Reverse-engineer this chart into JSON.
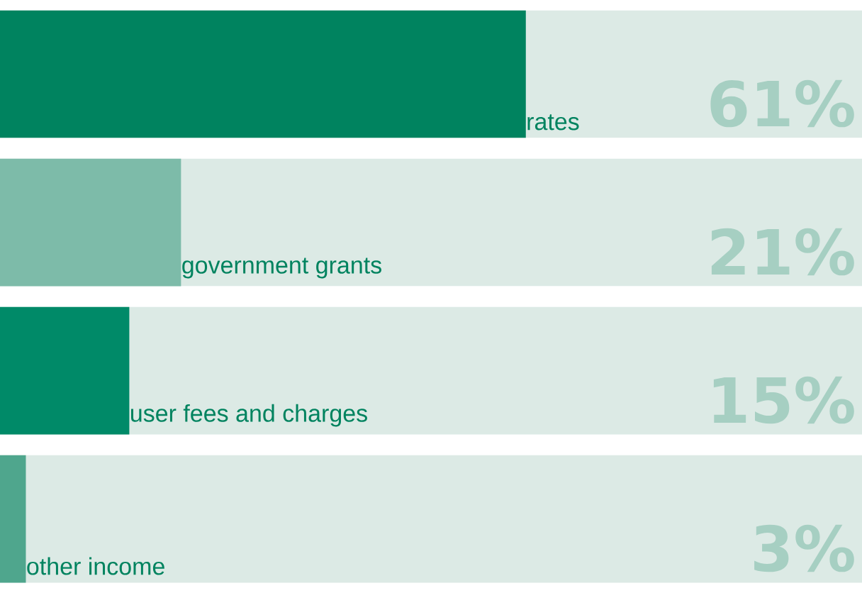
{
  "chart_data": {
    "type": "bar",
    "orientation": "horizontal",
    "categories": [
      "rates",
      "government grants",
      "user fees and charges",
      "other income"
    ],
    "values": [
      61,
      21,
      15,
      3
    ],
    "value_labels": [
      "61%",
      "21%",
      "15%",
      "3%"
    ],
    "colors": [
      "#00835f",
      "#7dbba9",
      "#008a68",
      "#4fa68d"
    ]
  }
}
